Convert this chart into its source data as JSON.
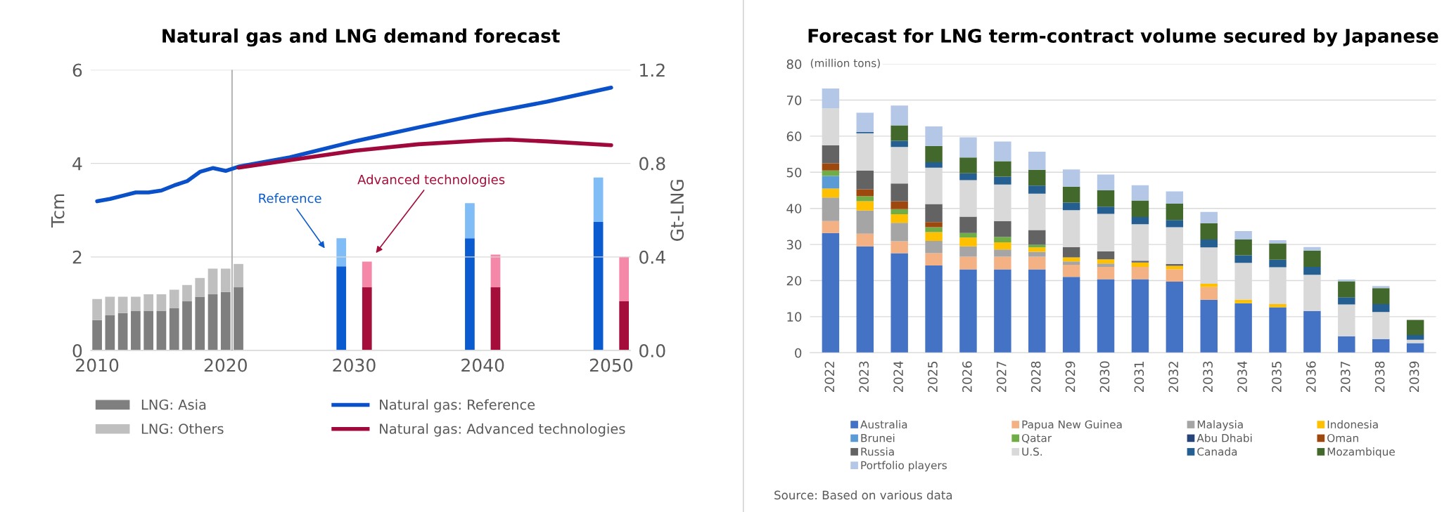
{
  "chart_data": [
    {
      "type": "bar",
      "title": "Natural gas and LNG demand forecast",
      "ylabel": "Tcm",
      "y2label": "Gt-LNG",
      "xlim": [
        2009.5,
        2051.5
      ],
      "xticks": [
        2010,
        2020,
        2030,
        2040,
        2050
      ],
      "ylim": [
        0,
        6
      ],
      "yticks": [
        0,
        2,
        4,
        6
      ],
      "y2lim": [
        0,
        1.2
      ],
      "y2ticks": [
        {
          "value": 0,
          "label": "0.0"
        },
        0.4,
        0.8,
        1.2
      ],
      "stacked": true,
      "grid": "y",
      "legend": "bottom",
      "ref_lines": [
        {
          "axis": "x",
          "value": 2020.5,
          "color": "#a6a6a6"
        }
      ],
      "annotations": [
        "Reference",
        "Advanced technologies"
      ],
      "series": [
        {
          "name": "LNG: Asia",
          "color": "#7f7f7f",
          "axis": "y2",
          "x": [
            2010,
            2011,
            2012,
            2013,
            2014,
            2015,
            2016,
            2017,
            2018,
            2019,
            2020,
            2021,
            2029,
            2031,
            2039,
            2041,
            2049,
            2051
          ],
          "values": [
            0.13,
            0.15,
            0.16,
            0.17,
            0.17,
            0.17,
            0.18,
            0.21,
            0.23,
            0.24,
            0.25,
            0.27,
            0.36,
            0.27,
            0.48,
            0.27,
            0.55,
            0.21
          ],
          "colors": [
            "#7f7f7f",
            "#7f7f7f",
            "#7f7f7f",
            "#7f7f7f",
            "#7f7f7f",
            "#7f7f7f",
            "#7f7f7f",
            "#7f7f7f",
            "#7f7f7f",
            "#7f7f7f",
            "#7f7f7f",
            "#7f7f7f",
            "#0a5ad0",
            "#a50d3b",
            "#0a5ad0",
            "#a50d3b",
            "#0a5ad0",
            "#a50d3b"
          ]
        },
        {
          "name": "LNG: Others",
          "color": "#bfbfbf",
          "axis": "y2",
          "x": [
            2010,
            2011,
            2012,
            2013,
            2014,
            2015,
            2016,
            2017,
            2018,
            2019,
            2020,
            2021,
            2029,
            2031,
            2039,
            2041,
            2049,
            2051
          ],
          "values": [
            0.09,
            0.08,
            0.07,
            0.06,
            0.07,
            0.07,
            0.08,
            0.07,
            0.08,
            0.11,
            0.1,
            0.1,
            0.12,
            0.11,
            0.15,
            0.14,
            0.19,
            0.19
          ],
          "colors": [
            "#bfbfbf",
            "#bfbfbf",
            "#bfbfbf",
            "#bfbfbf",
            "#bfbfbf",
            "#bfbfbf",
            "#bfbfbf",
            "#bfbfbf",
            "#bfbfbf",
            "#bfbfbf",
            "#bfbfbf",
            "#bfbfbf",
            "#80bdf7",
            "#f587a8",
            "#80bdf7",
            "#f587a8",
            "#80bdf7",
            "#f587a8"
          ]
        },
        {
          "name": "Natural gas: Reference",
          "type": "line",
          "color": "#0a50c8",
          "x": [
            2010,
            2011,
            2012,
            2013,
            2014,
            2015,
            2016,
            2017,
            2018,
            2019,
            2020,
            2021,
            2025,
            2030,
            2035,
            2040,
            2045,
            2050
          ],
          "values": [
            3.19,
            3.24,
            3.31,
            3.38,
            3.38,
            3.42,
            3.53,
            3.62,
            3.82,
            3.9,
            3.84,
            3.93,
            4.13,
            4.47,
            4.77,
            5.06,
            5.32,
            5.62
          ]
        },
        {
          "name": "Natural gas: Advanced technologies",
          "type": "line",
          "color": "#a0093c",
          "x": [
            2021,
            2025,
            2030,
            2035,
            2040,
            2042,
            2045,
            2050
          ],
          "values": [
            3.91,
            4.07,
            4.27,
            4.41,
            4.49,
            4.51,
            4.47,
            4.39
          ]
        }
      ]
    },
    {
      "type": "bar",
      "title": "Forecast for LNG term-contract volume secured by Japanese",
      "ylabel": "(million tons)",
      "categories": [
        "2022",
        "2023",
        "2024",
        "2025",
        "2026",
        "2027",
        "2028",
        "2029",
        "2030",
        "2031",
        "2032",
        "2033",
        "2034",
        "2035",
        "2036",
        "2037",
        "2038",
        "2039"
      ],
      "ylim": [
        0,
        80
      ],
      "yticks": [
        0,
        10,
        20,
        30,
        40,
        50,
        60,
        70,
        80
      ],
      "stacked": true,
      "grid": "y",
      "legend": "bottom",
      "annotations": [
        "Source: Based on various data"
      ],
      "series": [
        {
          "name": "Australia",
          "color": "#4472c4",
          "values": [
            33.2,
            29.5,
            27.6,
            24.2,
            23.1,
            23.1,
            23.1,
            21.0,
            20.4,
            20.4,
            19.7,
            14.7,
            13.7,
            12.6,
            11.6,
            4.6,
            3.8,
            2.7
          ]
        },
        {
          "name": "Papua New Guinea",
          "color": "#f4b183",
          "values": [
            3.3,
            3.5,
            3.3,
            3.4,
            3.5,
            3.5,
            3.5,
            3.4,
            3.4,
            3.4,
            3.4,
            3.5,
            0,
            0,
            0,
            0,
            0,
            0
          ]
        },
        {
          "name": "Malaysia",
          "color": "#a5a5a5",
          "values": [
            6.5,
            6.4,
            5.1,
            3.4,
            2.9,
            2.0,
            1.4,
            0.9,
            0.9,
            0,
            0,
            0,
            0,
            0,
            0,
            0,
            0,
            0
          ]
        },
        {
          "name": "Indonesia",
          "color": "#ffc000",
          "values": [
            2.5,
            2.6,
            2.4,
            2.4,
            2.4,
            2.0,
            1.2,
            1.1,
            1.2,
            1.2,
            1.0,
            0.9,
            1.0,
            0.9,
            0,
            0,
            0,
            0
          ]
        },
        {
          "name": "Brunei",
          "color": "#5b9bd5",
          "values": [
            3.5,
            0,
            0,
            0,
            0,
            0,
            0,
            0,
            0,
            0,
            0,
            0,
            0,
            0,
            0,
            0,
            0,
            0
          ]
        },
        {
          "name": "Qatar",
          "color": "#70ad47",
          "values": [
            1.5,
            1.4,
            1.4,
            1.4,
            1.3,
            1.5,
            0.7,
            0,
            0,
            0,
            0,
            0,
            0,
            0,
            0,
            0,
            0,
            0
          ]
        },
        {
          "name": "Abu Dhabi",
          "color": "#264478",
          "values": [
            0,
            0,
            0,
            0,
            0,
            0,
            0,
            0,
            0,
            0,
            0,
            0,
            0,
            0,
            0,
            0,
            0,
            0
          ]
        },
        {
          "name": "Oman",
          "color": "#9e480e",
          "values": [
            2.0,
            1.9,
            2.2,
            1.4,
            0,
            0,
            0,
            0,
            0,
            0,
            0,
            0,
            0,
            0,
            0,
            0,
            0,
            0
          ]
        },
        {
          "name": "Russia",
          "color": "#636363",
          "values": [
            5.0,
            5.2,
            4.9,
            5.0,
            4.5,
            4.4,
            4.1,
            2.9,
            2.2,
            0.5,
            0.5,
            0,
            0,
            0,
            0,
            0,
            0,
            0
          ]
        },
        {
          "name": "U.S.",
          "color": "#d9d9d9",
          "values": [
            10.2,
            10.3,
            10.1,
            10.1,
            10.1,
            10.1,
            10.1,
            10.2,
            10.4,
            10.1,
            10.2,
            10.1,
            10.2,
            10.2,
            10.0,
            8.8,
            7.5,
            0.9
          ]
        },
        {
          "name": "Canada",
          "color": "#255e91",
          "values": [
            0,
            0.4,
            1.7,
            1.5,
            1.9,
            2.2,
            2.2,
            2.1,
            2.0,
            2.0,
            2.0,
            2.2,
            2.1,
            2.1,
            2.2,
            2.0,
            2.2,
            1.3
          ]
        },
        {
          "name": "Mozambique",
          "color": "#43682b",
          "values": [
            0,
            0,
            4.3,
            4.5,
            4.4,
            4.3,
            4.4,
            4.4,
            4.5,
            4.6,
            4.5,
            4.5,
            4.4,
            4.5,
            4.5,
            4.4,
            4.4,
            4.2
          ]
        },
        {
          "name": "Portfolio players",
          "color": "#b4c7e7",
          "values": [
            5.5,
            5.3,
            5.5,
            5.4,
            5.6,
            5.4,
            5.0,
            4.8,
            4.4,
            4.2,
            3.4,
            3.1,
            2.3,
            0.9,
            1.0,
            0.5,
            0.6,
            0
          ]
        }
      ]
    }
  ]
}
